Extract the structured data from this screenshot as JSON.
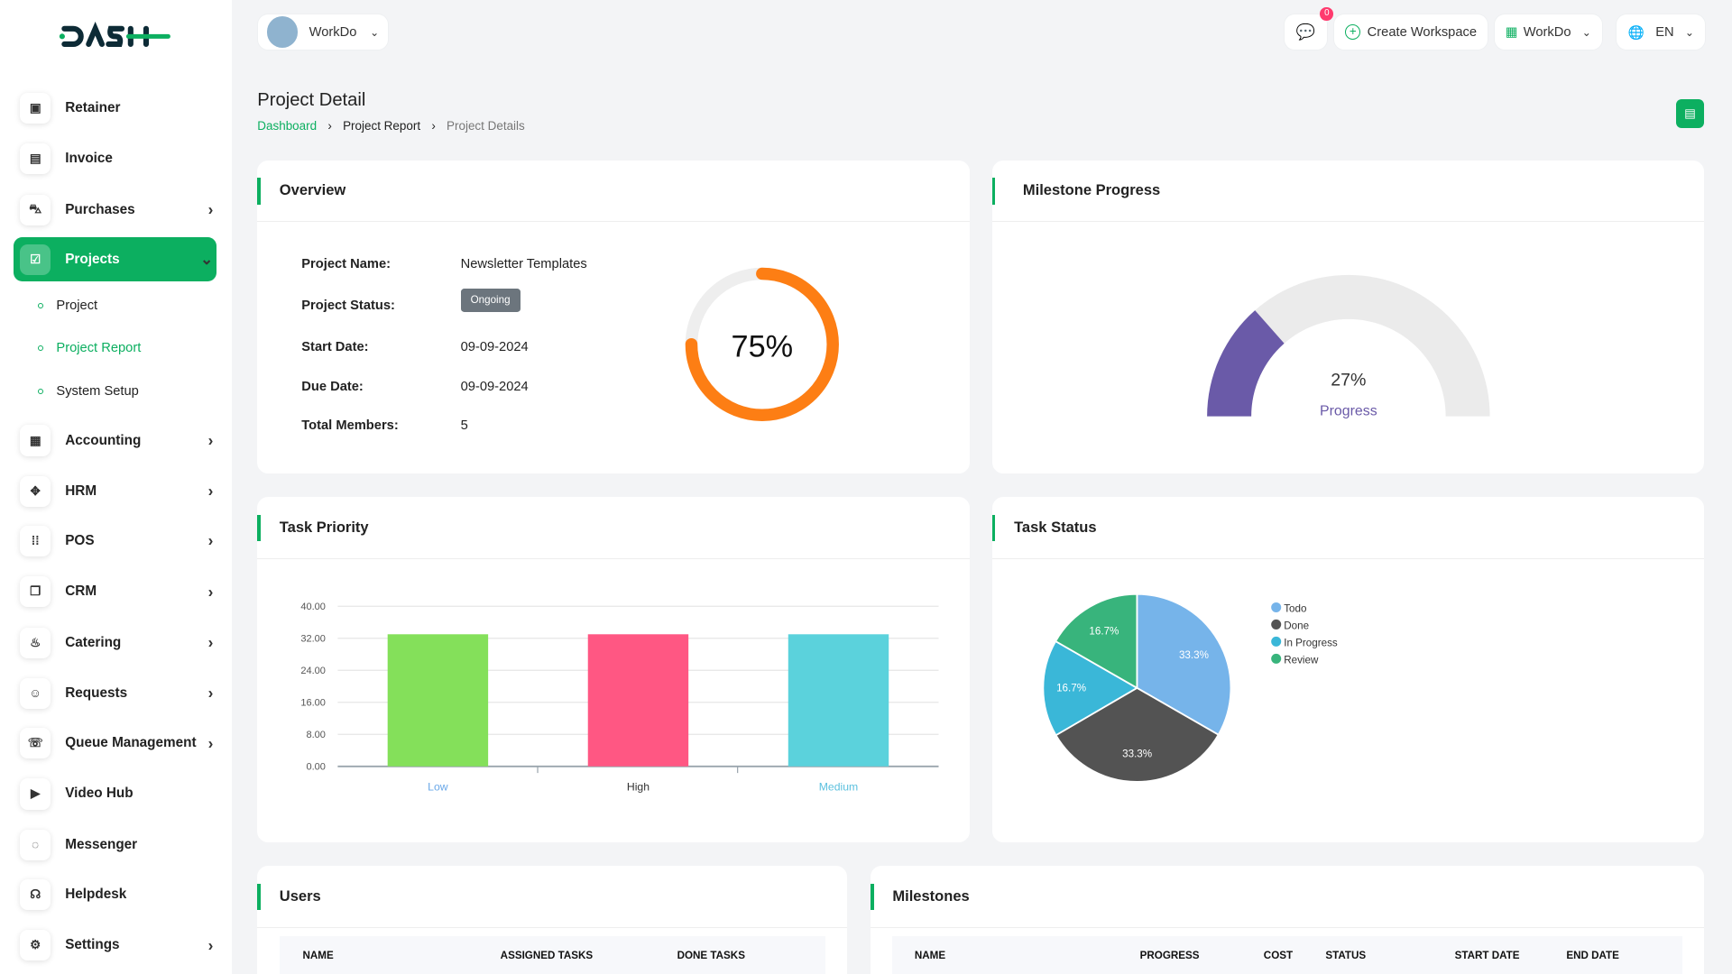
{
  "app": {
    "logo": "DASH"
  },
  "header": {
    "workspace": "WorkDo",
    "notification_count": "0",
    "create_workspace": "Create Workspace",
    "company": "WorkDo",
    "language": "EN"
  },
  "sidebar": {
    "items": [
      {
        "label": "Retainer",
        "icon": "retainer-icon",
        "chevron": false
      },
      {
        "label": "Invoice",
        "icon": "invoice-icon",
        "chevron": false
      },
      {
        "label": "Purchases",
        "icon": "cart-icon",
        "chevron": true
      },
      {
        "label": "Projects",
        "icon": "projects-icon",
        "chevron": true,
        "active": true
      },
      {
        "label": "Accounting",
        "icon": "accounting-icon",
        "chevron": true
      },
      {
        "label": "HRM",
        "icon": "hrm-icon",
        "chevron": true
      },
      {
        "label": "POS",
        "icon": "pos-icon",
        "chevron": true
      },
      {
        "label": "CRM",
        "icon": "crm-icon",
        "chevron": true
      },
      {
        "label": "Catering",
        "icon": "catering-icon",
        "chevron": true
      },
      {
        "label": "Requests",
        "icon": "requests-icon",
        "chevron": true
      },
      {
        "label": "Queue Management",
        "icon": "queue-icon",
        "chevron": true
      },
      {
        "label": "Video Hub",
        "icon": "video-icon",
        "chevron": false
      },
      {
        "label": "Messenger",
        "icon": "messenger-icon",
        "chevron": false
      },
      {
        "label": "Helpdesk",
        "icon": "helpdesk-icon",
        "chevron": false
      },
      {
        "label": "Settings",
        "icon": "gear-icon",
        "chevron": true
      }
    ],
    "sub_items": [
      {
        "label": "Project"
      },
      {
        "label": "Project Report",
        "active": true
      },
      {
        "label": "System Setup"
      }
    ]
  },
  "page": {
    "title": "Project Detail",
    "breadcrumb": [
      "Dashboard",
      "Project Report",
      "Project Details"
    ]
  },
  "overview": {
    "title": "Overview",
    "fields": [
      {
        "label": "Project Name:",
        "value": "Newsletter Templates"
      },
      {
        "label": "Project Status:",
        "value": "Ongoing"
      },
      {
        "label": "Start Date:",
        "value": "09-09-2024"
      },
      {
        "label": "Due Date:",
        "value": "09-09-2024"
      },
      {
        "label": "Total Members:",
        "value": "5"
      }
    ],
    "progress_percent": 75,
    "progress_label": "75%",
    "progress_color": "#fd7e14"
  },
  "milestone": {
    "title": "Milestone Progress",
    "percent": 27,
    "percent_label": "27%",
    "label": "Progress",
    "color": "#6a5aa8"
  },
  "chart_data": [
    {
      "type": "bar",
      "title": "Task Priority",
      "categories": [
        "Low",
        "High",
        "Medium"
      ],
      "values": [
        33,
        33,
        33
      ],
      "colors": [
        "#84e05a",
        "#ff5783",
        "#5bd2dc"
      ],
      "ylim": [
        0,
        40
      ],
      "yticks": [
        "0.00",
        "8.00",
        "16.00",
        "24.00",
        "32.00",
        "40.00"
      ],
      "grid": true
    },
    {
      "type": "pie",
      "title": "Task Status",
      "categories": [
        "Todo",
        "Done",
        "In Progress",
        "Review"
      ],
      "values": [
        33.3,
        33.3,
        16.7,
        16.7
      ],
      "labels": [
        "33.3%",
        "33.3%",
        "16.7%",
        "16.7%"
      ],
      "colors": [
        "#76b4ea",
        "#535353",
        "#3ab7d8",
        "#38b47c"
      ],
      "legend": "right"
    }
  ],
  "users": {
    "title": "Users",
    "columns": [
      "NAME",
      "ASSIGNED TASKS",
      "DONE TASKS"
    ]
  },
  "milestones": {
    "title": "Milestones",
    "columns": [
      "NAME",
      "PROGRESS",
      "COST",
      "STATUS",
      "START DATE",
      "END DATE"
    ]
  }
}
